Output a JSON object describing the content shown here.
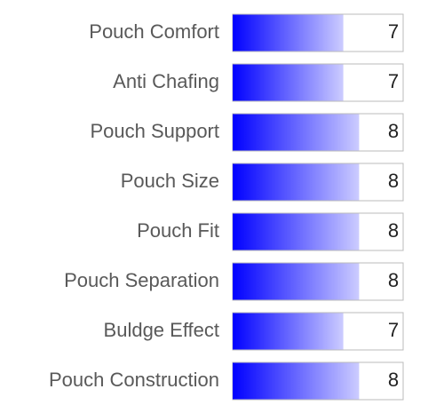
{
  "chart_data": {
    "type": "bar",
    "orientation": "horizontal",
    "categories": [
      "Pouch Comfort",
      "Anti Chafing",
      "Pouch Support",
      "Pouch Size",
      "Pouch Fit",
      "Pouch Separation",
      "Buldge Effect",
      "Pouch Construction"
    ],
    "values": [
      7,
      7,
      8,
      8,
      8,
      8,
      7,
      8
    ],
    "xlim": [
      0,
      10
    ],
    "color": "#0000ff"
  }
}
